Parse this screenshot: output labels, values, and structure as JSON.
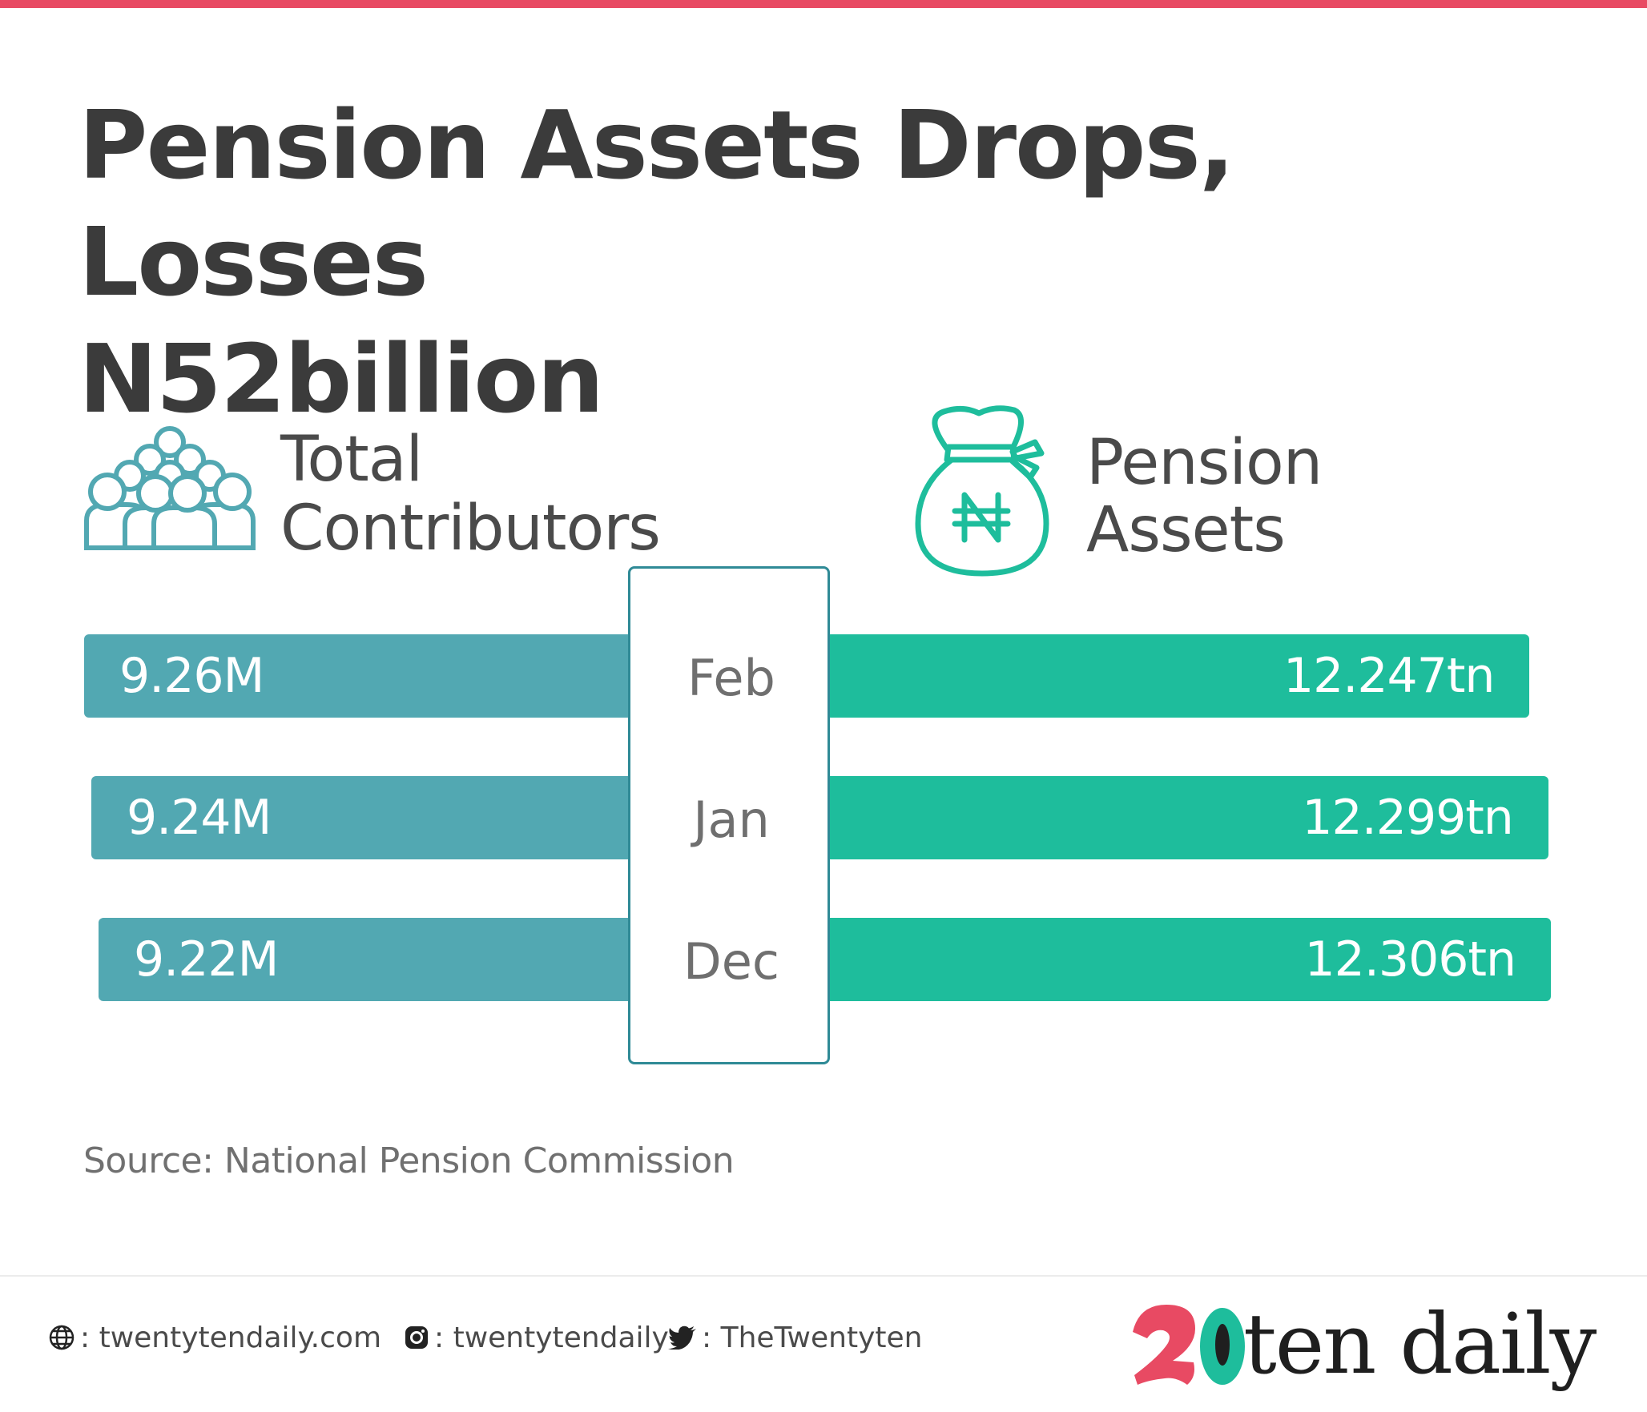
{
  "title_line1": "Pension Assets Drops, Losses",
  "title_line2": "N52billion",
  "left_header": {
    "line1": "Total",
    "line2": "Contributors",
    "icon": "people-group-icon"
  },
  "right_header": {
    "line1": "Pension",
    "line2": "Assets",
    "icon": "money-bag-naira-icon"
  },
  "colors": {
    "accent": "#e84a63",
    "contributors_bar": "#52a8b2",
    "assets_bar": "#1ebd9c",
    "box_border": "#2f8a96"
  },
  "chart_data": {
    "type": "bar",
    "categories": [
      "Feb",
      "Jan",
      "Dec"
    ],
    "series": [
      {
        "name": "Total Contributors",
        "values": [
          9.26,
          9.24,
          9.22
        ],
        "labels": [
          "9.26M",
          "9.24M",
          "9.22M"
        ]
      },
      {
        "name": "Pension Assets",
        "values": [
          12.247,
          12.299,
          12.306
        ],
        "labels": [
          "12.247tn",
          "12.299tn",
          "12.306tn"
        ]
      }
    ]
  },
  "source": "Source: National Pension Commission",
  "footer": {
    "website": ": twentytendaily.com",
    "instagram": ": twentytendaily",
    "twitter": ": TheTwentyten",
    "logo_text": "ten daily"
  }
}
